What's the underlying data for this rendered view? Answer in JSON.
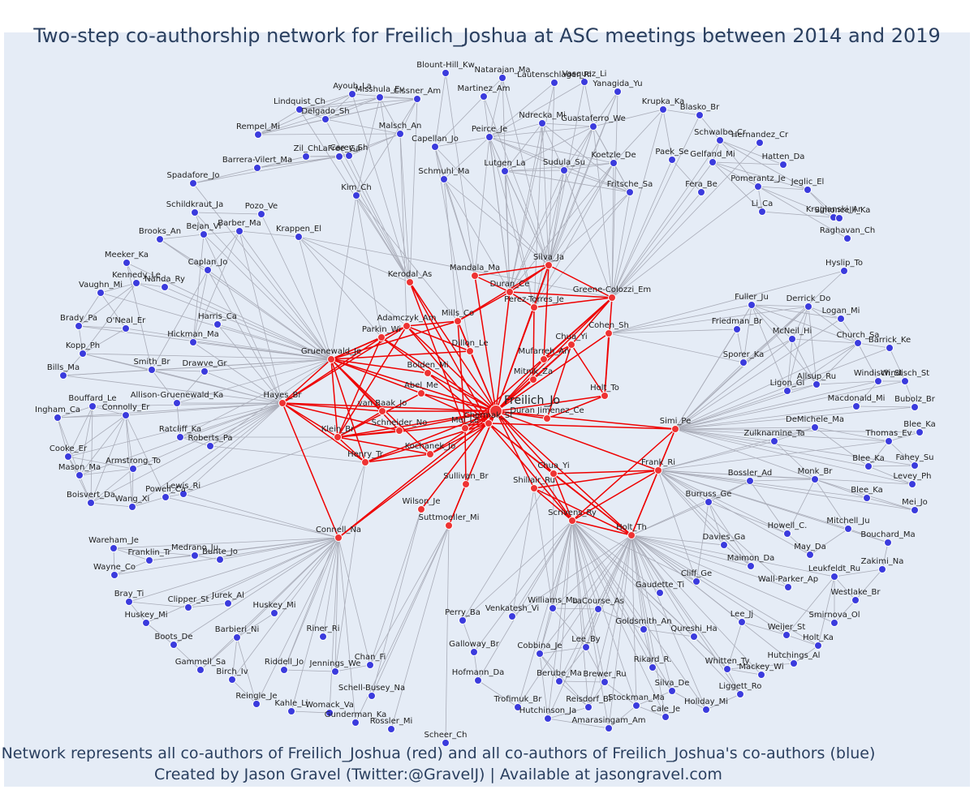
{
  "title": "Two-step co-authorship network for Freilich_Joshua at ASC meetings between 2014 and 2019",
  "footer": {
    "line1": "Network represents all co-authors of Freilich_Joshua (red) and all co-authors of Freilich_Joshua's co-authors (blue)",
    "line2": "Created by Jason Gravel (Twitter:@GravelJ) | Available at jasongravel.com"
  },
  "colors": {
    "red": "#ee3333",
    "blue": "#3b3bdd",
    "redEdge": "#ee0000",
    "greyEdge": "#a9acb8",
    "plotBg": "#e5ecf6"
  },
  "center": "Freilich_Jo",
  "red_nodes": [
    "Freilich_Jo",
    "Kerodal_As",
    "Mandala_Ma",
    "Silva_Ja",
    "Duran_Ce",
    "Greene-Colozzi_Em",
    "Perez-Torres_Je",
    "Adamczyk_Am",
    "Mills_Co",
    "Parkin_Wi",
    "Gruenewald_Je",
    "Dillon_Le",
    "Chua_Yi",
    "Cohen_Sh",
    "Mufarreh_An",
    "Bolden_Mi",
    "Mitnik_Za",
    "Holt_To",
    "Abel_Me",
    "Hayes_Br",
    "van Baak_Jo",
    "Duran Jimenez_Ce",
    "Chermak_St",
    "Schneider_No",
    "Klein_Br",
    "Simi_Pe",
    "Kochanek_Jo",
    "Henry_Tr",
    "Frank_Ri",
    "Chua_Yi (2)",
    "Sullivan_Br",
    "Shillair_Ru",
    "Wilson_Je",
    "Scrivens_Ry",
    "Holt_Th",
    "Suttmoeller_Mi",
    "Connell_Na",
    "Mei_Le"
  ],
  "blue_nodes": [
    "Blount-Hill_Kw",
    "Natarajan_Ma",
    "Lautenschlager_Ri",
    "Vasquez_Li",
    "Ayoub_La",
    "Misshula_Ev",
    "Cissner_Am",
    "Martinez_Am",
    "Yanagida_Yu",
    "Lindquist_Ch",
    "Delgado_Sh",
    "Malsch_An",
    "Ndrecka_Mi",
    "Krupka_Ka",
    "Blasko_Br",
    "Rempel_Mi",
    "Peirce_Je",
    "Guastaferro_We",
    "Schwalbe_Cr",
    "Hernandez_Cr",
    "Capellan_Jo",
    "LaFree_Ga",
    "Carey_Sh",
    "Paek_Se",
    "Gelfand_Mi",
    "Hatten_Da",
    "Zil_Ch",
    "Barrera-Vilert_Ma",
    "Lutgen_La",
    "Sudula_Su",
    "Koetzle_De",
    "Schmuhl_Ma",
    "Pomerantz_Je",
    "Jeglic_El",
    "Spadafore_Jo",
    "Kim_Ch",
    "Fritsche_Sa",
    "Fera_Be",
    "Li_Ca",
    "Kruglanski_Ar",
    "Simoncelli_Ka",
    "Schildkraut_Ja",
    "Pozo_Ve",
    "Bejan_Vl",
    "Barber_Ma",
    "Krappen_El",
    "Raghavan_Ch",
    "Brooks_An",
    "Caplan_Jo",
    "Hyslip_To",
    "Meeker_Ka",
    "Kennedy_Le",
    "Nanda_Ry",
    "Vaughn_Mi",
    "Fuller_Ju",
    "Derrick_Do",
    "Harris_Ca",
    "O'Neal_Er",
    "Logan_Mi",
    "Brady_Pa",
    "Friedman_Br",
    "McNeil_Hi",
    "Hickman_Ma",
    "Church_Sa",
    "Barrick_Ke",
    "Kopp_Ph",
    "Sporer_Ka",
    "Smith_Br",
    "Drawve_Gr",
    "Bills_Ma",
    "Allsup_Ru",
    "Windisch_St",
    "Windisch_St (2)",
    "Ligon_Gi",
    "Allison-Gruenewald_Ka",
    "Bouffard_Le",
    "Macdonald_Mi",
    "Bubolz_Br",
    "Connolly_Er",
    "Ingham_Ca",
    "Blee_Ka",
    "DeMichele_Ma",
    "Thomas_Ev",
    "Ratcliff_Ka",
    "Zulknarnine_Ta",
    "Roberts_Pa",
    "Cooke_Er",
    "Blee_Ka (2)",
    "Fahey_Su",
    "Armstrong_To",
    "Levey_Ph",
    "Mason_Ma",
    "Bossler_Ad",
    "Monk_Br",
    "Powell_Ca",
    "Lewis_Ri",
    "Blee_Ka (3)",
    "Boisvert_Da",
    "Wang_Xi",
    "Burruss_Ge",
    "Mei_Jo",
    "Howell_C.",
    "Mitchell_Ju",
    "Bouchard_Ma",
    "Wareham_Je",
    "Medrano_Ju",
    "Davies_Ga",
    "May_Da",
    "Franklin_Tr",
    "Bunte_Jo",
    "Maimon_Da",
    "Zakimi_Na",
    "Wayne_Co",
    "Leukfeldt_Ru",
    "Cliff_Ge",
    "Wall-Parker_Ap",
    "Westlake_Br",
    "Gaudette_Ti",
    "Bray_Ti",
    "Jurek_Al",
    "Clipper_St",
    "Smirnova_Ol",
    "LaCourse_As",
    "Williams_Ma",
    "Huskey_Mi",
    "Huskey_Mi (2)",
    "Perry_Ba",
    "Venkatesh_Vi",
    "Goldsmith_An",
    "Lee_Jj",
    "Weijer_St",
    "Holt_Ka",
    "Barbieri_Ni",
    "Riner_Ri",
    "Qureshi_Ha",
    "Boots_De",
    "Lee_By",
    "Galloway_Br",
    "Cobbina_Je",
    "Rikard_R.",
    "Whitten_Ty",
    "Hutchings_Al",
    "Mackey_Wi",
    "Gammell_Sa",
    "Riddell_Jo",
    "Jennings_We",
    "Chan_Fi",
    "Birch_Iv",
    "Hofmann_Da",
    "Berube_Ma",
    "Brewer_Ru",
    "Silva_De",
    "Liggett_Ro",
    "Schell-Busey_Na",
    "Reingle_Je",
    "Kahle_Li",
    "Womack_Va",
    "Stockman_Ma",
    "Trofimuk_Br",
    "Reisdorf_Bi",
    "Holiday_Mi",
    "Cale_Je",
    "Hutchinson_Ja",
    "Gunderman_Ka",
    "Rossler_Mi",
    "Amarasingam_Am",
    "Scheer_Ch"
  ]
}
